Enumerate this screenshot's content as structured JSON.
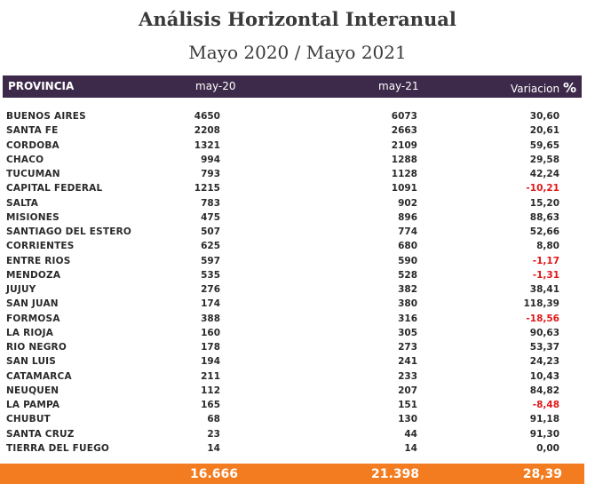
{
  "title": "Análisis Horizontal Interanual",
  "subtitle": "Mayo 2020 / Mayo 2021",
  "columns": {
    "provincia": "PROVINCIA",
    "may20": "may-20",
    "may21": "may-21",
    "variacion": "Variacion",
    "percent_sign": "%"
  },
  "accent_colors": {
    "header_bg": "#3d2a4a",
    "total_bg": "#f47c20",
    "negative": "#e01818"
  },
  "rows": [
    {
      "provincia": "BUENOS AIRES",
      "may20": "4650",
      "may21": "6073",
      "variacion": "30,60",
      "negative": false
    },
    {
      "provincia": "SANTA FE",
      "may20": "2208",
      "may21": "2663",
      "variacion": "20,61",
      "negative": false
    },
    {
      "provincia": "CORDOBA",
      "may20": "1321",
      "may21": "2109",
      "variacion": "59,65",
      "negative": false
    },
    {
      "provincia": "CHACO",
      "may20": "994",
      "may21": "1288",
      "variacion": "29,58",
      "negative": false
    },
    {
      "provincia": "TUCUMAN",
      "may20": "793",
      "may21": "1128",
      "variacion": "42,24",
      "negative": false
    },
    {
      "provincia": "CAPITAL FEDERAL",
      "may20": "1215",
      "may21": "1091",
      "variacion": "-10,21",
      "negative": true
    },
    {
      "provincia": "SALTA",
      "may20": "783",
      "may21": "902",
      "variacion": "15,20",
      "negative": false
    },
    {
      "provincia": "MISIONES",
      "may20": "475",
      "may21": "896",
      "variacion": "88,63",
      "negative": false
    },
    {
      "provincia": "SANTIAGO DEL ESTERO",
      "may20": "507",
      "may21": "774",
      "variacion": "52,66",
      "negative": false
    },
    {
      "provincia": "CORRIENTES",
      "may20": "625",
      "may21": "680",
      "variacion": "8,80",
      "negative": false
    },
    {
      "provincia": "ENTRE RIOS",
      "may20": "597",
      "may21": "590",
      "variacion": "-1,17",
      "negative": true
    },
    {
      "provincia": "MENDOZA",
      "may20": "535",
      "may21": "528",
      "variacion": "-1,31",
      "negative": true
    },
    {
      "provincia": "JUJUY",
      "may20": "276",
      "may21": "382",
      "variacion": "38,41",
      "negative": false
    },
    {
      "provincia": "SAN JUAN",
      "may20": "174",
      "may21": "380",
      "variacion": "118,39",
      "negative": false
    },
    {
      "provincia": "FORMOSA",
      "may20": "388",
      "may21": "316",
      "variacion": "-18,56",
      "negative": true
    },
    {
      "provincia": "LA RIOJA",
      "may20": "160",
      "may21": "305",
      "variacion": "90,63",
      "negative": false
    },
    {
      "provincia": "RIO NEGRO",
      "may20": "178",
      "may21": "273",
      "variacion": "53,37",
      "negative": false
    },
    {
      "provincia": "SAN LUIS",
      "may20": "194",
      "may21": "241",
      "variacion": "24,23",
      "negative": false
    },
    {
      "provincia": "CATAMARCA",
      "may20": "211",
      "may21": "233",
      "variacion": "10,43",
      "negative": false
    },
    {
      "provincia": "NEUQUEN",
      "may20": "112",
      "may21": "207",
      "variacion": "84,82",
      "negative": false
    },
    {
      "provincia": "LA PAMPA",
      "may20": "165",
      "may21": "151",
      "variacion": "-8,48",
      "negative": true
    },
    {
      "provincia": "CHUBUT",
      "may20": "68",
      "may21": "130",
      "variacion": "91,18",
      "negative": false
    },
    {
      "provincia": "SANTA CRUZ",
      "may20": "23",
      "may21": "44",
      "variacion": "91,30",
      "negative": false
    },
    {
      "provincia": "TIERRA DEL FUEGO",
      "may20": "14",
      "may21": "14",
      "variacion": "0,00",
      "negative": false
    }
  ],
  "totals": {
    "may20": "16.666",
    "may21": "21.398",
    "variacion": "28,39"
  }
}
